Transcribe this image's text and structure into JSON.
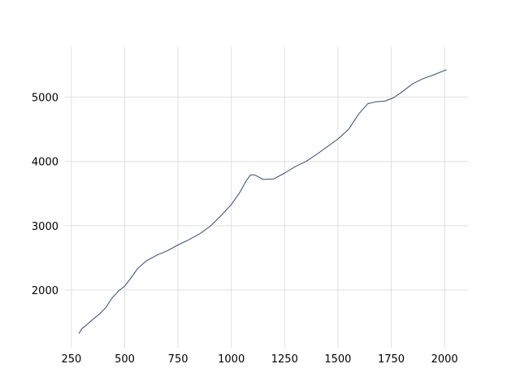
{
  "chart_data": {
    "type": "line",
    "title": "",
    "xlabel": "",
    "ylabel": "",
    "xlim": [
      220,
      2110
    ],
    "ylim": [
      1100,
      5780
    ],
    "xticks": [
      250,
      500,
      750,
      1000,
      1250,
      1500,
      1750,
      2000
    ],
    "yticks": [
      2000,
      3000,
      4000,
      5000
    ],
    "grid": true,
    "legend": "none",
    "colors": {
      "line": "#2f4b6e",
      "grid": "#e0e0e0"
    },
    "series": [
      {
        "x": [
          285,
          300,
          320,
          350,
          380,
          410,
          440,
          470,
          500,
          530,
          560,
          600,
          650,
          700,
          750,
          800,
          850,
          900,
          950,
          1000,
          1040,
          1070,
          1090,
          1110,
          1150,
          1200,
          1250,
          1300,
          1350,
          1400,
          1450,
          1500,
          1550,
          1600,
          1640,
          1680,
          1720,
          1760,
          1800,
          1850,
          1900,
          1950,
          2010
        ],
        "y": [
          1320,
          1400,
          1450,
          1540,
          1620,
          1720,
          1870,
          1980,
          2060,
          2190,
          2330,
          2450,
          2540,
          2610,
          2700,
          2780,
          2870,
          2990,
          3150,
          3330,
          3520,
          3700,
          3790,
          3790,
          3720,
          3730,
          3820,
          3920,
          4000,
          4110,
          4230,
          4350,
          4500,
          4750,
          4900,
          4930,
          4940,
          4990,
          5080,
          5210,
          5290,
          5350,
          5430
        ]
      }
    ]
  }
}
